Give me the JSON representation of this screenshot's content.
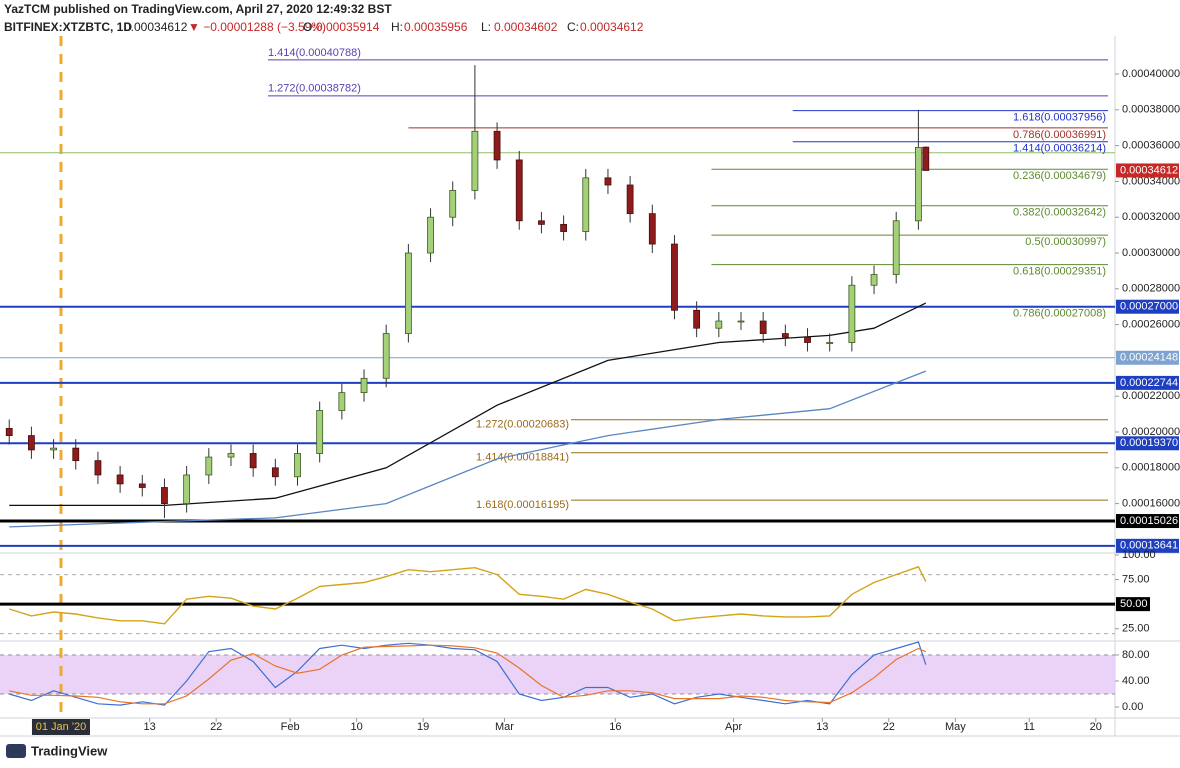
{
  "chart_data": {
    "type": "candlestick",
    "header": {
      "published": "YazTCM published on TradingView.com, April 27, 2020 12:49:32 BST",
      "symbol": "BITFINEX:XTZBTC, 1D",
      "change": "▼ −0.00001288 (−3.59%)",
      "ohlc_labels": [
        "O:",
        "H:",
        "L:",
        "C:"
      ]
    },
    "up_color": "#a5d07a",
    "down_color": "#8e1c1c",
    "x": [
      -7,
      -4,
      -1,
      2,
      5,
      8,
      11,
      14,
      17,
      20,
      23,
      26,
      29,
      32,
      35,
      38,
      41,
      44,
      47,
      50,
      53,
      56,
      59,
      62,
      65,
      68,
      71,
      74,
      77,
      80,
      83,
      86,
      89,
      92,
      95,
      98,
      101,
      104,
      107,
      110,
      113,
      116,
      117
    ],
    "open": [
      0.000202,
      0.000198,
      0.00019,
      0.000191,
      0.000184,
      0.000176,
      0.000171,
      0.000169,
      0.00016,
      0.000176,
      0.000186,
      0.000188,
      0.00018,
      0.000175,
      0.000188,
      0.000212,
      0.000222,
      0.00023,
      0.000255,
      0.0003,
      0.00032,
      0.000335,
      0.000368,
      0.000352,
      0.000318,
      0.000316,
      0.000312,
      0.000342,
      0.000338,
      0.000322,
      0.000305,
      0.000268,
      0.000258,
      0.000262,
      0.000262,
      0.000255,
      0.000253,
      0.00025,
      0.00025,
      0.000282,
      0.000288,
      0.000318,
      0.00035914
    ],
    "high": [
      0.000207,
      0.000203,
      0.000196,
      0.000196,
      0.000189,
      0.000181,
      0.000176,
      0.000174,
      0.000181,
      0.000191,
      0.000193,
      0.000193,
      0.000185,
      0.000193,
      0.000217,
      0.000227,
      0.000235,
      0.00026,
      0.000305,
      0.000325,
      0.00034,
      0.000405,
      0.000373,
      0.000357,
      0.000323,
      0.000321,
      0.000347,
      0.000347,
      0.000343,
      0.000327,
      0.00031,
      0.000273,
      0.000267,
      0.000267,
      0.000267,
      0.00026,
      0.000258,
      0.000255,
      0.000287,
      0.000293,
      0.000323,
      0.00038,
      0.00035956
    ],
    "low": [
      0.000193,
      0.000185,
      0.000185,
      0.000179,
      0.000171,
      0.000166,
      0.000164,
      0.000152,
      0.000155,
      0.000171,
      0.000181,
      0.000175,
      0.00017,
      0.00017,
      0.000183,
      0.000207,
      0.000217,
      0.000225,
      0.00025,
      0.000295,
      0.000315,
      0.00033,
      0.000347,
      0.000313,
      0.000311,
      0.000307,
      0.000307,
      0.000333,
      0.000317,
      0.0003,
      0.000263,
      0.000253,
      0.000253,
      0.000257,
      0.00025,
      0.000248,
      0.000245,
      0.000245,
      0.000245,
      0.000277,
      0.000283,
      0.000313,
      0.00034602
    ],
    "close": [
      0.000198,
      0.00019,
      0.000191,
      0.000184,
      0.000176,
      0.000171,
      0.000169,
      0.00016,
      0.000176,
      0.000186,
      0.000188,
      0.00018,
      0.000175,
      0.000188,
      0.000212,
      0.000222,
      0.00023,
      0.000255,
      0.0003,
      0.00032,
      0.000335,
      0.000368,
      0.000352,
      0.000318,
      0.000316,
      0.000312,
      0.000342,
      0.000338,
      0.000322,
      0.000305,
      0.000268,
      0.000258,
      0.000262,
      0.000262,
      0.000255,
      0.000253,
      0.00025,
      0.00025,
      0.000282,
      0.000288,
      0.000318,
      0.000359,
      0.00034612
    ],
    "xlim": [
      -8.25,
      142.6
    ],
    "xticks": [
      {
        "value": 12,
        "label": "13"
      },
      {
        "value": 21,
        "label": "22"
      },
      {
        "value": 31,
        "label": "Feb"
      },
      {
        "value": 40,
        "label": "10"
      },
      {
        "value": 49,
        "label": "19"
      },
      {
        "value": 60,
        "label": "Mar"
      },
      {
        "value": 75,
        "label": "16"
      },
      {
        "value": 91,
        "label": "Apr"
      },
      {
        "value": 103,
        "label": "13"
      },
      {
        "value": 112,
        "label": "22"
      },
      {
        "value": 121,
        "label": "May"
      },
      {
        "value": 131,
        "label": "11"
      },
      {
        "value": 140,
        "label": "20"
      }
    ],
    "crosshair": {
      "value": 0,
      "label": "01 Jan '20",
      "color": "#f0a830"
    },
    "ylim": [
      0.0001324,
      0.0004246
    ],
    "yticks": [
      {
        "value": 0.0004,
        "label": "0.00040000"
      },
      {
        "value": 0.00038,
        "label": "0.00038000"
      },
      {
        "value": 0.00036,
        "label": "0.00036000"
      },
      {
        "value": 0.00034,
        "label": "0.00034000"
      },
      {
        "value": 0.00032,
        "label": "0.00032000"
      },
      {
        "value": 0.0003,
        "label": "0.00030000"
      },
      {
        "value": 0.00028,
        "label": "0.00028000"
      },
      {
        "value": 0.00026,
        "label": "0.00026000"
      },
      {
        "value": 0.00022,
        "label": "0.00022000"
      },
      {
        "value": 0.0002,
        "label": "0.00020000"
      },
      {
        "value": 0.00018,
        "label": "0.00018000"
      },
      {
        "value": 0.00016,
        "label": "0.00016000"
      }
    ],
    "series": [
      {
        "color": "#111111",
        "x": [
          -7,
          14,
          29,
          44,
          59,
          74,
          89,
          104,
          110,
          117
        ],
        "values": [
          0.000159,
          0.000159,
          0.000163,
          0.00018,
          0.000215,
          0.00024,
          0.00025,
          0.000254,
          0.000258,
          0.000272
        ]
      },
      {
        "color": "#5b86c2",
        "x": [
          -7,
          14,
          29,
          44,
          59,
          74,
          89,
          104,
          117
        ],
        "values": [
          0.000147,
          0.00015,
          0.000152,
          0.00016,
          0.000185,
          0.000198,
          0.000207,
          0.000213,
          0.000234
        ]
      }
    ],
    "plain_levels": [
      {
        "value": 0.000356,
        "color": "#8fbf6a"
      }
    ],
    "axis_levels": [
      {
        "value": 0.00027,
        "label": "0.00027000",
        "color": "#1e3fbf",
        "width": 2
      },
      {
        "value": 0.00024148,
        "label": "0.00024148",
        "color": "#7fa3cf",
        "width": 1
      },
      {
        "value": 0.00022744,
        "label": "0.00022744",
        "color": "#1e3fbf",
        "width": 2
      },
      {
        "value": 0.0001937,
        "label": "0.00019370",
        "color": "#1e3fbf",
        "width": 2
      },
      {
        "value": 0.00015026,
        "label": "0.00015026",
        "color": "#000000",
        "width": 3
      },
      {
        "value": 0.00013641,
        "label": "0.00013641",
        "color": "#1e3fbf",
        "width": 2
      }
    ],
    "price_color": "#c62828",
    "fib_sets": [
      {
        "levels": [
          {
            "label": "1.414(0.00040788)",
            "value": 0.00040788,
            "from": 28,
            "color": "#5b3fb0"
          },
          {
            "label": "1.272(0.00038782)",
            "value": 0.00038782,
            "from": 28,
            "color": "#5b3fb0"
          }
        ]
      },
      {
        "levels": [
          {
            "label": "1.618(0.00037956)",
            "value": 0.00037956,
            "from": 99,
            "color": "#2233cc"
          },
          {
            "label": "0.786(0.00036991)",
            "value": 0.00036991,
            "from": 47,
            "color": "#a0302a"
          },
          {
            "label": "1.414(0.00036214)",
            "value": 0.00036214,
            "from": 99,
            "color": "#2233cc"
          },
          {
            "label": "0.236(0.00034679)",
            "value": 0.00034679,
            "from": 88,
            "color": "#5c8a2e"
          },
          {
            "label": "0.382(0.00032642)",
            "value": 0.00032642,
            "from": 88,
            "color": "#5c8a2e"
          },
          {
            "label": "0.5(0.00030997)",
            "value": 0.00030997,
            "from": 88,
            "color": "#5c8a2e"
          },
          {
            "label": "0.618(0.00029351)",
            "value": 0.00029351,
            "from": 88,
            "color": "#5c8a2e"
          },
          {
            "label": "0.786(0.00027008)",
            "value": 0.00027008,
            "from": 88,
            "color": "#5c8a2e"
          }
        ]
      },
      {
        "levels": [
          {
            "label": "1.272(0.00020683)",
            "value": 0.00020683,
            "from": 69,
            "color": "#9a6a1c"
          },
          {
            "label": "1.414(0.00018841)",
            "value": 0.00018841,
            "from": 69,
            "color": "#9a6a1c"
          },
          {
            "label": "1.618(0.00016195)",
            "value": 0.00016195,
            "from": 69,
            "color": "#9a6a1c"
          }
        ]
      }
    ],
    "rsi": {
      "color": "#d4a418",
      "ylim": [
        12.5,
        102
      ],
      "yticks": [
        {
          "value": 100,
          "label": "100.00"
        },
        {
          "value": 75,
          "label": "75.00"
        },
        {
          "value": 25,
          "label": "25.00"
        }
      ],
      "bands": [
        80,
        20
      ],
      "hline": {
        "value": 50,
        "label": "50.00"
      },
      "values": [
        45,
        38,
        42,
        40,
        36,
        33,
        33,
        30,
        55,
        58,
        56,
        48,
        45,
        56,
        68,
        70,
        72,
        78,
        85,
        83,
        85,
        87,
        80,
        60,
        58,
        55,
        65,
        60,
        52,
        45,
        33,
        36,
        38,
        40,
        38,
        37,
        37,
        38,
        60,
        72,
        80,
        88,
        73
      ]
    },
    "stoch": {
      "ylim": [
        -16.9,
        101.5
      ],
      "yticks": [
        {
          "value": 80,
          "label": "80.00"
        },
        {
          "value": 40,
          "label": "40.00"
        },
        {
          "value": 0,
          "label": "0.00"
        }
      ],
      "bands": [
        80,
        20
      ],
      "band_color": "#e6c8f5",
      "series": [
        {
          "color": "#3f6fd1",
          "values": [
            20,
            10,
            25,
            15,
            5,
            3,
            8,
            3,
            40,
            85,
            90,
            70,
            30,
            55,
            90,
            95,
            90,
            95,
            98,
            95,
            90,
            88,
            70,
            20,
            10,
            15,
            30,
            30,
            15,
            20,
            5,
            15,
            20,
            15,
            10,
            5,
            10,
            5,
            50,
            80,
            90,
            100,
            65
          ]
        },
        {
          "color": "#e8742a",
          "values": [
            25,
            18,
            18,
            17,
            15,
            8,
            5,
            5,
            17,
            43,
            72,
            82,
            63,
            52,
            58,
            80,
            92,
            93,
            94,
            95,
            94,
            91,
            83,
            60,
            33,
            15,
            18,
            25,
            25,
            22,
            13,
            13,
            13,
            17,
            15,
            10,
            8,
            7,
            22,
            45,
            73,
            90,
            85
          ]
        }
      ]
    },
    "footer": "TradingView"
  }
}
